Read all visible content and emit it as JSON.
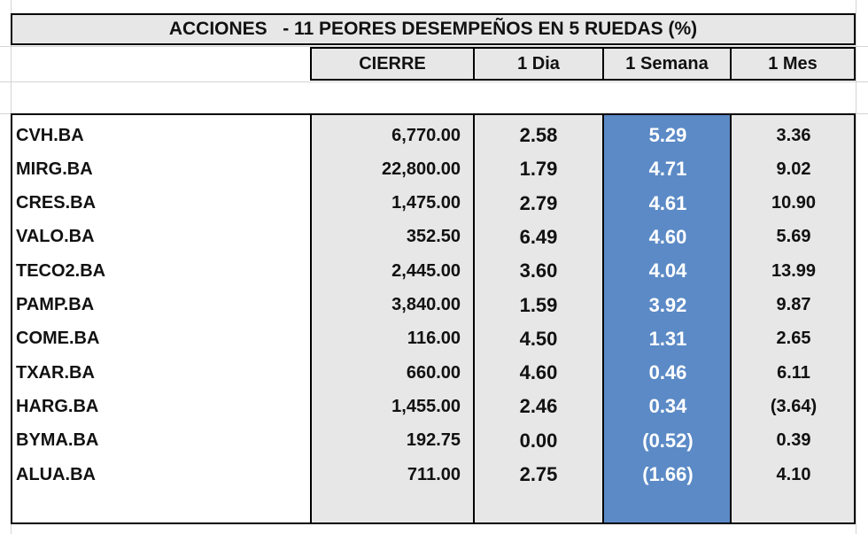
{
  "table": {
    "title": "ACCIONES   - 11 PEORES DESEMPEÑOS EN 5 RUEDAS (%)",
    "headers": [
      "CIERRE",
      "1 Dia",
      "1 Semana",
      "1 Mes"
    ],
    "rows": [
      {
        "ticker": "CVH.BA",
        "cierre": "6,770.00",
        "dia": "2.58",
        "semana": "5.29",
        "mes": "3.36"
      },
      {
        "ticker": "MIRG.BA",
        "cierre": "22,800.00",
        "dia": "1.79",
        "semana": "4.71",
        "mes": "9.02"
      },
      {
        "ticker": "CRES.BA",
        "cierre": "1,475.00",
        "dia": "2.79",
        "semana": "4.61",
        "mes": "10.90"
      },
      {
        "ticker": "VALO.BA",
        "cierre": "352.50",
        "dia": "6.49",
        "semana": "4.60",
        "mes": "5.69"
      },
      {
        "ticker": "TECO2.BA",
        "cierre": "2,445.00",
        "dia": "3.60",
        "semana": "4.04",
        "mes": "13.99"
      },
      {
        "ticker": "PAMP.BA",
        "cierre": "3,840.00",
        "dia": "1.59",
        "semana": "3.92",
        "mes": "9.87"
      },
      {
        "ticker": "COME.BA",
        "cierre": "116.00",
        "dia": "4.50",
        "semana": "1.31",
        "mes": "2.65"
      },
      {
        "ticker": "TXAR.BA",
        "cierre": "660.00",
        "dia": "4.60",
        "semana": "0.46",
        "mes": "6.11"
      },
      {
        "ticker": "HARG.BA",
        "cierre": "1,455.00",
        "dia": "2.46",
        "semana": "0.34",
        "mes": "(3.64)"
      },
      {
        "ticker": "BYMA.BA",
        "cierre": "192.75",
        "dia": "0.00",
        "semana": "(0.52)",
        "mes": "0.39"
      },
      {
        "ticker": "ALUA.BA",
        "cierre": "711.00",
        "dia": "2.75",
        "semana": "(1.66)",
        "mes": "4.10"
      }
    ]
  },
  "colors": {
    "header_fill": "#e7e7e7",
    "data_fill": "#e7e7e7",
    "highlight_fill": "#5b8ac6",
    "highlight_text": "#ffffff",
    "grid": "#d4d4d4"
  }
}
